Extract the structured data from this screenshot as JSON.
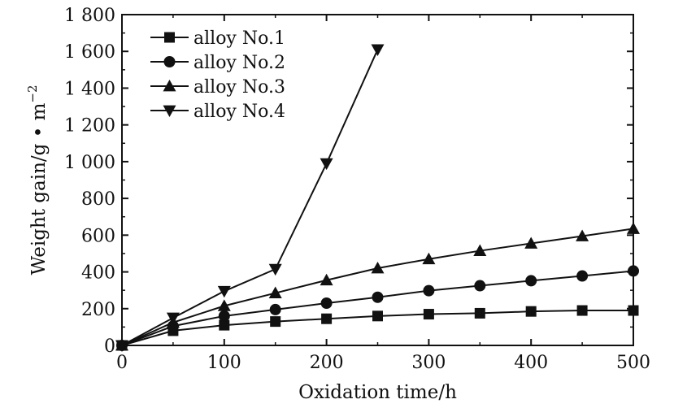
{
  "chart_data": {
    "type": "line",
    "xlabel": "Oxidation time/h",
    "ylabel": "Weight gain/g • m",
    "ylabel_sup": "−2",
    "xlim": [
      0,
      500
    ],
    "ylim": [
      0,
      1800
    ],
    "x_ticks": [
      0,
      100,
      200,
      300,
      400,
      500
    ],
    "x_tick_labels": [
      "0",
      "100",
      "200",
      "300",
      "400",
      "500"
    ],
    "y_ticks": [
      0,
      200,
      400,
      600,
      800,
      1000,
      1200,
      1400,
      1600,
      1800
    ],
    "y_tick_labels": [
      "0",
      "200",
      "400",
      "600",
      "800",
      "1 000",
      "1 200",
      "1 400",
      "1 600",
      "1 800"
    ],
    "grid": false,
    "legend_position": "top-left",
    "series": [
      {
        "name": "alloy No.1",
        "marker": "square",
        "x": [
          0,
          50,
          100,
          150,
          200,
          250,
          300,
          350,
          400,
          450,
          500
        ],
        "y": [
          0,
          80,
          110,
          130,
          145,
          160,
          170,
          175,
          185,
          190,
          190
        ]
      },
      {
        "name": "alloy No.2",
        "marker": "circle",
        "x": [
          0,
          50,
          100,
          150,
          200,
          250,
          300,
          350,
          400,
          450,
          500
        ],
        "y": [
          0,
          105,
          160,
          195,
          230,
          262,
          298,
          325,
          352,
          378,
          405
        ]
      },
      {
        "name": "alloy No.3",
        "marker": "triangle-up",
        "x": [
          0,
          50,
          100,
          150,
          200,
          250,
          300,
          350,
          400,
          450,
          500
        ],
        "y": [
          0,
          125,
          215,
          285,
          355,
          420,
          470,
          515,
          555,
          595,
          635
        ]
      },
      {
        "name": "alloy No.4",
        "marker": "triangle-down",
        "x": [
          0,
          50,
          100,
          150,
          200,
          250
        ],
        "y": [
          0,
          150,
          295,
          415,
          990,
          1610
        ]
      }
    ]
  }
}
